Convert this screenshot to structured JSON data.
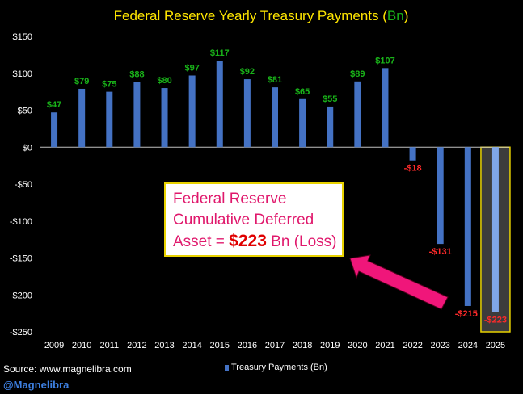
{
  "chart_data": {
    "type": "bar",
    "title_main": "Federal Reserve Yearly Treasury Payments (",
    "title_unit": "Bn",
    "title_close": ")",
    "categories": [
      "2009",
      "2010",
      "2011",
      "2012",
      "2013",
      "2014",
      "2015",
      "2016",
      "2017",
      "2018",
      "2019",
      "2020",
      "2021",
      "2022",
      "2023",
      "2024",
      "2025"
    ],
    "values": [
      47,
      79,
      75,
      88,
      80,
      97,
      117,
      92,
      81,
      65,
      55,
      89,
      107,
      -18,
      -131,
      -215,
      -223
    ],
    "data_labels": [
      "$47",
      "$79",
      "$75",
      "$88",
      "$80",
      "$97",
      "$117",
      "$92",
      "$81",
      "$65",
      "$55",
      "$89",
      "$107",
      "-$18",
      "-$131",
      "-$215",
      "-$223"
    ],
    "ylim": [
      -250,
      150
    ],
    "yticks": [
      150,
      100,
      50,
      0,
      -50,
      -100,
      -150,
      -200,
      -250
    ],
    "ytick_labels": [
      "$150",
      "$100",
      "$50",
      "$0",
      "-$50",
      "-$100",
      "-$150",
      "-$200",
      "-$250"
    ],
    "legend": "Treasury Payments (Bn)",
    "highlight_index": 16,
    "colors": {
      "bar": "#4472c4",
      "bar_highlight": "#7fa6e8",
      "positive_label": "#19b319",
      "negative_label": "#ff2a2a",
      "title": "#ffe600",
      "title_unit": "#19b319",
      "highlight_fill": "#3c3c3c",
      "highlight_border": "#e8d200",
      "arrow": "#f0167a"
    }
  },
  "annotation": {
    "line1": "Federal Reserve",
    "line2": "Cumulative Deferred",
    "line3_prefix": "Asset = ",
    "line3_value": "$223",
    "line3_suffix": " Bn (Loss)"
  },
  "footer": {
    "source": "Source: www.magnelibra.com",
    "handle": "@Magnelibra"
  }
}
